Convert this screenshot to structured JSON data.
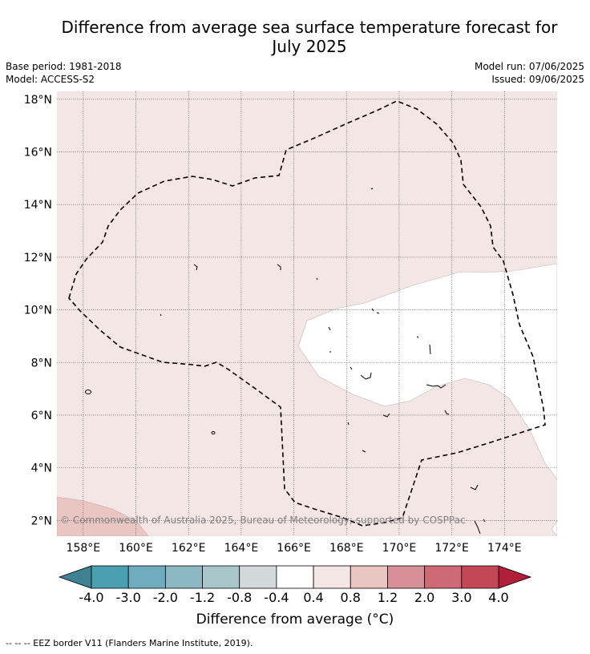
{
  "title_line1": "Difference from average sea surface temperature forecast for",
  "title_line2": "July 2025",
  "base_period": "Base period: 1981-2018",
  "model": "Model: ACCESS-S2",
  "model_run": "Model run: 07/06/2025",
  "issued": "Issued: 09/06/2025",
  "map": {
    "lat_range": [
      1.4,
      18.3
    ],
    "lon_range": [
      157.0,
      176.0
    ],
    "lat_ticks": [
      {
        "value": 18,
        "label": "18°N"
      },
      {
        "value": 16,
        "label": "16°N"
      },
      {
        "value": 14,
        "label": "14°N"
      },
      {
        "value": 12,
        "label": "12°N"
      },
      {
        "value": 10,
        "label": "10°N"
      },
      {
        "value": 8,
        "label": "8°N"
      },
      {
        "value": 6,
        "label": "6°N"
      },
      {
        "value": 4,
        "label": "4°N"
      },
      {
        "value": 2,
        "label": "2°N"
      }
    ],
    "lon_ticks": [
      {
        "value": 158,
        "label": "158°E"
      },
      {
        "value": 160,
        "label": "160°E"
      },
      {
        "value": 162,
        "label": "162°E"
      },
      {
        "value": 164,
        "label": "164°E"
      },
      {
        "value": 166,
        "label": "166°E"
      },
      {
        "value": 168,
        "label": "168°E"
      },
      {
        "value": 170,
        "label": "170°E"
      },
      {
        "value": 172,
        "label": "172°E"
      },
      {
        "value": 174,
        "label": "174°E"
      }
    ],
    "background_color": "#f4e6e5",
    "neutral_color": "#ffffff",
    "warm_patch_color": "#e9c6c2",
    "copyright": "© Commonwealth of Australia 2025, Bureau of Meteorology; supported by COSPPac"
  },
  "colorbar": {
    "title": "Difference from average (°C)",
    "tick_labels": [
      "-4.0",
      "-3.0",
      "-2.0",
      "-1.2",
      "-0.8",
      "-0.4",
      "0.4",
      "0.8",
      "1.2",
      "2.0",
      "3.0",
      "4.0"
    ],
    "colors": [
      "#4a9fb1",
      "#6fadbe",
      "#8db7c3",
      "#a9c6cb",
      "#d3d9db",
      "#ffffff",
      "#f4e6e5",
      "#e9c6c2",
      "#d88f98",
      "#cd6a76",
      "#c24857"
    ],
    "under_color": "#3f8292",
    "over_color": "#b11e3a"
  },
  "footer": "--  --  -- EEZ border V11 (Flanders Marine Institute, 2019)."
}
